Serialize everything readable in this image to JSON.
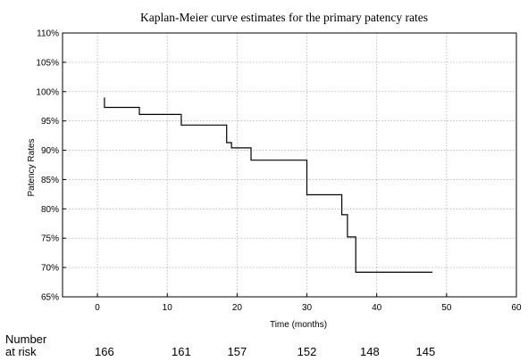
{
  "chart_data": {
    "type": "line",
    "title": "Kaplan-Meier curve estimates for the primary patency rates",
    "xlabel": "Time (months)",
    "ylabel": "Patency Rates",
    "xlim": [
      -5,
      60
    ],
    "ylim": [
      65,
      110
    ],
    "xticks": [
      0,
      10,
      20,
      30,
      40,
      50,
      60
    ],
    "yticks": [
      65,
      70,
      75,
      80,
      85,
      90,
      95,
      100,
      105,
      110
    ],
    "ytick_labels": [
      "65%",
      "70%",
      "75%",
      "80%",
      "85%",
      "90%",
      "95%",
      "100%",
      "105%",
      "110%"
    ],
    "grid": true,
    "series": [
      {
        "style": "step",
        "x": [
          1,
          1,
          6,
          6,
          12,
          12,
          18.5,
          18.5,
          19.2,
          19.2,
          22,
          22,
          30,
          30,
          35,
          35,
          35.8,
          35.8,
          37,
          37,
          48
        ],
        "y": [
          99,
          97.3,
          97.3,
          96.1,
          96.1,
          94.3,
          94.3,
          91.3,
          91.3,
          90.4,
          90.4,
          88.3,
          88.3,
          82.4,
          82.4,
          79,
          79,
          75.2,
          75.2,
          69.2,
          69.2
        ]
      }
    ]
  },
  "at_risk": {
    "label": "Number\nat risk",
    "values": [
      {
        "time": 1,
        "count": "166"
      },
      {
        "time": 12,
        "count": "161"
      },
      {
        "time": 20,
        "count": "157"
      },
      {
        "time": 30,
        "count": "152"
      },
      {
        "time": 39,
        "count": "148"
      },
      {
        "time": 47,
        "count": "145"
      }
    ]
  },
  "colors": {
    "line": "#000000",
    "grid": "#b0b0b0",
    "frame": "#000000"
  }
}
